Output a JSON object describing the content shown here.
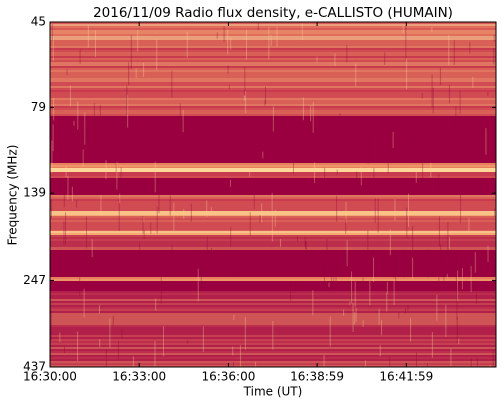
{
  "chart_data": {
    "type": "spectrogram",
    "title": "2016/11/09  Radio flux density, e-CALLISTO (HUMAIN)",
    "x_label": "Time (UT)",
    "y_label": "Frequency (MHz)",
    "xlim": [
      0,
      900
    ],
    "xticks": [
      {
        "value": 0,
        "label": "16:30:00"
      },
      {
        "value": 180,
        "label": "16:33:00"
      },
      {
        "value": 360,
        "label": "16:36:00"
      },
      {
        "value": 539,
        "label": "16:38:59"
      },
      {
        "value": 719,
        "label": "16:41:59"
      }
    ],
    "ylim": [
      45,
      437
    ],
    "yticks": [
      45,
      79,
      139,
      247,
      437
    ],
    "y_log": true,
    "y_inverted": true
  }
}
